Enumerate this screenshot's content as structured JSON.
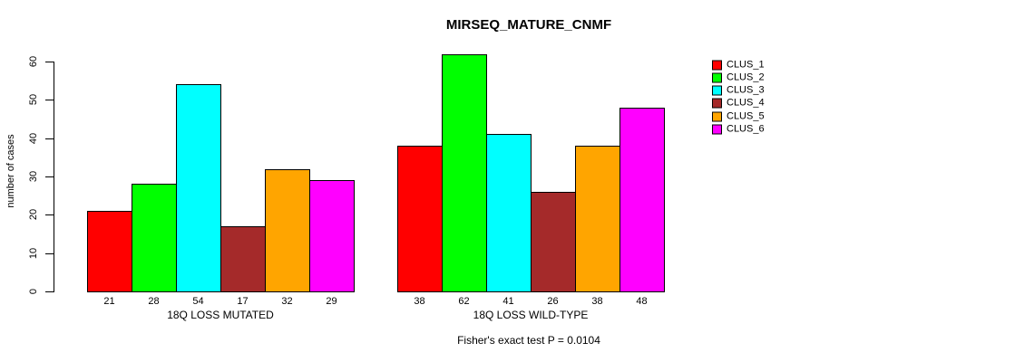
{
  "page": {
    "background_color": "#FFFFFF",
    "text_color": "#000000"
  },
  "chart_data": {
    "type": "bar",
    "title": "MIRSEQ_MATURE_CNMF",
    "ylabel": "number of cases",
    "xlabel": "",
    "ylim": [
      0,
      62
    ],
    "yticks": [
      0,
      10,
      20,
      30,
      40,
      50,
      60
    ],
    "grid": false,
    "legend_position": "right",
    "axis_color": "#000000",
    "bar_border_color": "#000000",
    "categories": [
      "18Q LOSS MUTATED",
      "18Q LOSS WILD-TYPE"
    ],
    "series": [
      {
        "name": "CLUS_1",
        "color": "#FF0000",
        "values": [
          21,
          38
        ]
      },
      {
        "name": "CLUS_2",
        "color": "#00FF00",
        "values": [
          28,
          62
        ]
      },
      {
        "name": "CLUS_3",
        "color": "#00FFFF",
        "values": [
          54,
          41
        ]
      },
      {
        "name": "CLUS_4",
        "color": "#A52A2A",
        "values": [
          17,
          26
        ]
      },
      {
        "name": "CLUS_5",
        "color": "#FFA500",
        "values": [
          32,
          38
        ]
      },
      {
        "name": "CLUS_6",
        "color": "#FF00FF",
        "values": [
          29,
          48
        ]
      }
    ],
    "bar_value_labels_shown": true,
    "annotation": "Fisher's exact test P = 0.0104"
  }
}
